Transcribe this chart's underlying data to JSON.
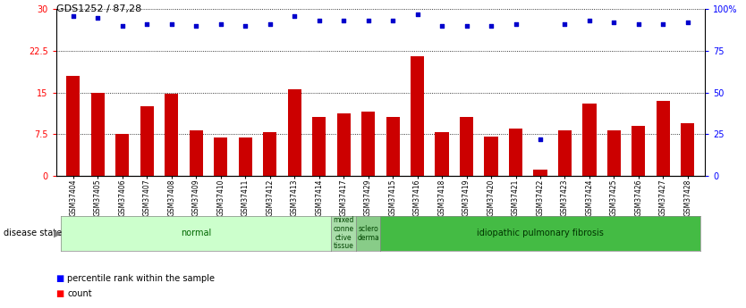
{
  "title": "GDS1252 / 87,28",
  "samples": [
    "GSM37404",
    "GSM37405",
    "GSM37406",
    "GSM37407",
    "GSM37408",
    "GSM37409",
    "GSM37410",
    "GSM37411",
    "GSM37412",
    "GSM37413",
    "GSM37414",
    "GSM37417",
    "GSM37429",
    "GSM37415",
    "GSM37416",
    "GSM37418",
    "GSM37419",
    "GSM37420",
    "GSM37421",
    "GSM37422",
    "GSM37423",
    "GSM37424",
    "GSM37425",
    "GSM37426",
    "GSM37427",
    "GSM37428"
  ],
  "counts": [
    18.0,
    15.0,
    7.5,
    12.5,
    14.8,
    8.2,
    6.8,
    6.8,
    7.8,
    15.5,
    10.5,
    11.2,
    11.5,
    10.5,
    21.5,
    7.8,
    10.5,
    7.0,
    8.5,
    1.0,
    8.2,
    13.0,
    8.2,
    9.0,
    13.5,
    9.5
  ],
  "percentile": [
    96,
    95,
    90,
    91,
    91,
    90,
    91,
    90,
    91,
    96,
    93,
    93,
    93,
    93,
    97,
    90,
    90,
    90,
    91,
    22,
    91,
    93,
    92,
    91,
    91,
    92
  ],
  "disease_groups": [
    {
      "label": "normal",
      "start": 0,
      "end": 11,
      "color": "#ccffcc",
      "text_color": "#006600"
    },
    {
      "label": "mixed\nconne\nctive\ntissue",
      "start": 11,
      "end": 12,
      "color": "#aaddaa",
      "text_color": "#004400"
    },
    {
      "label": "sclero\nderma",
      "start": 12,
      "end": 13,
      "color": "#88cc88",
      "text_color": "#004400"
    },
    {
      "label": "idiopathic pulmonary fibrosis",
      "start": 13,
      "end": 26,
      "color": "#44bb44",
      "text_color": "#003300"
    }
  ],
  "ylim_left": [
    0,
    30
  ],
  "yticks_left": [
    0,
    7.5,
    15,
    22.5,
    30
  ],
  "ytick_labels_left": [
    "0",
    "7.5",
    "15",
    "22.5",
    "30"
  ],
  "yticks_right": [
    0,
    25,
    50,
    75,
    100
  ],
  "ytick_labels_right": [
    "0",
    "25",
    "50",
    "75",
    "100%"
  ],
  "bar_color": "#cc0000",
  "dot_color": "#0000cc",
  "bg_color": "#ffffff"
}
